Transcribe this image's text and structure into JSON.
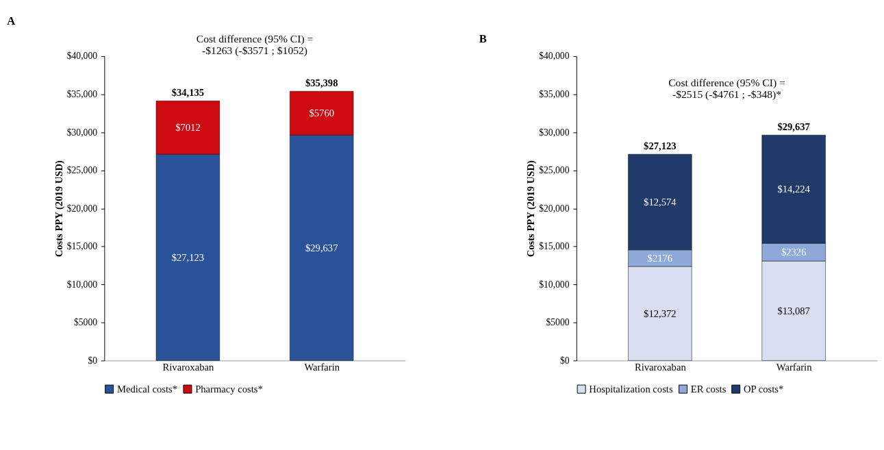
{
  "chart_data": [
    {
      "type": "bar",
      "title": "A",
      "ylabel": "Costs PPY (2019 USD)",
      "categories": [
        "Rivaroxaban",
        "Warfarin"
      ],
      "stacked": true,
      "legend": "bottom",
      "series": [
        {
          "name": "Medical costs*",
          "color": "#2a5298",
          "values": [
            27123,
            29637
          ],
          "value_labels": [
            "$27,123",
            "$29,637"
          ]
        },
        {
          "name": "Pharmacy costs*",
          "color": "#cc0a10",
          "values": [
            7012,
            5760
          ],
          "value_labels": [
            "$7012",
            "$5760"
          ]
        }
      ],
      "totals": [
        "$34,135",
        "$35,398"
      ],
      "ylim": [
        0,
        40000
      ],
      "yticks": [
        {
          "value": 0,
          "label": "$0"
        },
        {
          "value": 5000,
          "label": "$5000"
        },
        {
          "value": 10000,
          "label": "$10,000"
        },
        {
          "value": 15000,
          "label": "$15,000"
        },
        {
          "value": 20000,
          "label": "$20,000"
        },
        {
          "value": 25000,
          "label": "$25,000"
        },
        {
          "value": 30000,
          "label": "$30,000"
        },
        {
          "value": 35000,
          "label": "$35,000"
        },
        {
          "value": 40000,
          "label": "$40,000"
        }
      ],
      "annotations": [
        "Cost difference (95% CI) =\n-$1263 (-$3571 ; $1052)"
      ],
      "grid": false
    },
    {
      "type": "bar",
      "title": "B",
      "ylabel": "Costs PPY (2019 USD)",
      "categories": [
        "Rivaroxaban",
        "Warfarin"
      ],
      "stacked": true,
      "legend": "bottom",
      "series": [
        {
          "name": "Hospitalization costs",
          "color": "#d9dff0",
          "values": [
            12372,
            13087
          ],
          "value_labels": [
            "$12,372",
            "$13,087"
          ]
        },
        {
          "name": "ER costs",
          "color": "#8ea8da",
          "values": [
            2176,
            2326
          ],
          "value_labels": [
            "$2176",
            "$2326"
          ]
        },
        {
          "name": "OP costs*",
          "color": "#213a6a",
          "values": [
            12574,
            14224
          ],
          "value_labels": [
            "$12,574",
            "$14,224"
          ]
        }
      ],
      "totals": [
        "$27,123",
        "$29,637"
      ],
      "ylim": [
        0,
        40000
      ],
      "yticks": [
        {
          "value": 0,
          "label": "$0"
        },
        {
          "value": 5000,
          "label": "$5000"
        },
        {
          "value": 10000,
          "label": "$10,000"
        },
        {
          "value": 15000,
          "label": "$15,000"
        },
        {
          "value": 20000,
          "label": "$20,000"
        },
        {
          "value": 25000,
          "label": "$25,000"
        },
        {
          "value": 30000,
          "label": "$30,000"
        },
        {
          "value": 35000,
          "label": "$35,000"
        },
        {
          "value": 40000,
          "label": "$40,000"
        }
      ],
      "annotations": [
        "Cost difference (95% CI) =\n-$2515 (-$4761 ; -$348)*"
      ],
      "grid": false
    }
  ]
}
